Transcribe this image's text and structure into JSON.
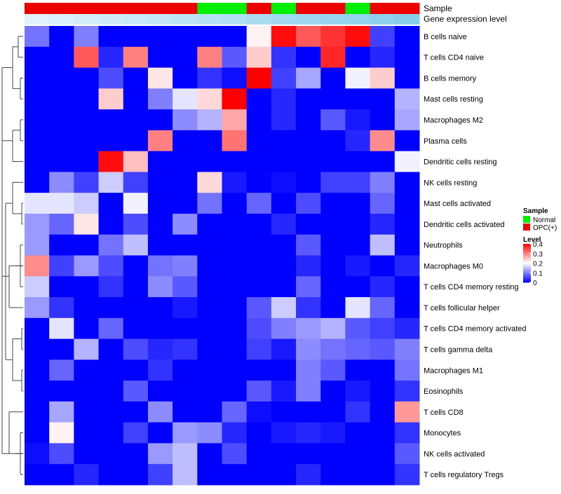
{
  "chart_data": {
    "type": "heatmap",
    "annotation_tracks": [
      {
        "label": "Sample",
        "values": [
          "OPC(+)",
          "OPC(+)",
          "OPC(+)",
          "OPC(+)",
          "OPC(+)",
          "OPC(+)",
          "OPC(+)",
          "Normal",
          "Normal",
          "OPC(+)",
          "Normal",
          "OPC(+)",
          "OPC(+)",
          "Normal",
          "OPC(+)",
          "OPC(+)"
        ]
      },
      {
        "label": "Gene expression level",
        "values": [
          0.0,
          0.07,
          0.13,
          0.2,
          0.27,
          0.33,
          0.4,
          0.47,
          0.53,
          0.6,
          0.67,
          0.73,
          0.8,
          0.87,
          0.93,
          1.0
        ]
      }
    ],
    "rows": [
      "B cells naive",
      "T cells CD4 naive",
      "B cells memory",
      "Mast cells resting",
      "Macrophages M2",
      "Plasma cells",
      "Dendritic cells resting",
      "NK cells resting",
      "Mast cells activated",
      "Dendritic cells activated",
      "Neutrophils",
      "Macrophages M0",
      "T cells CD4 memory resting",
      "T cells follicular helper",
      "T cells CD4 memory activated",
      "T cells gamma delta",
      "Macrophages M1",
      "Eosinophils",
      "T cells CD8",
      "Monocytes",
      "NK cells activated",
      "T cells regulatory  Tregs"
    ],
    "values": [
      [
        0.09,
        0.0,
        0.1,
        0.0,
        0.0,
        0.0,
        0.0,
        0.0,
        0.0,
        0.21,
        0.39,
        0.33,
        0.36,
        0.39,
        0.05,
        0.0
      ],
      [
        0.0,
        0.0,
        0.33,
        0.03,
        0.3,
        0.0,
        0.0,
        0.3,
        0.07,
        0.24,
        0.04,
        0.0,
        0.37,
        0.0,
        0.03,
        0.0
      ],
      [
        0.0,
        0.0,
        0.0,
        0.06,
        0.0,
        0.22,
        0.0,
        0.04,
        0.01,
        0.4,
        0.05,
        0.13,
        0.0,
        0.19,
        0.24,
        0.0
      ],
      [
        0.0,
        0.0,
        0.0,
        0.24,
        0.0,
        0.1,
        0.18,
        0.23,
        0.4,
        0.0,
        0.03,
        0.0,
        0.0,
        0.0,
        0.0,
        0.14
      ],
      [
        0.0,
        0.0,
        0.0,
        0.0,
        0.0,
        0.0,
        0.11,
        0.14,
        0.27,
        0.0,
        0.03,
        0.0,
        0.07,
        0.02,
        0.0,
        0.13
      ],
      [
        0.0,
        0.0,
        0.0,
        0.0,
        0.0,
        0.3,
        0.0,
        0.0,
        0.31,
        0.0,
        0.0,
        0.0,
        0.0,
        0.03,
        0.29,
        0.0
      ],
      [
        0.0,
        0.0,
        0.0,
        0.39,
        0.25,
        0.0,
        0.0,
        0.0,
        0.0,
        0.0,
        0.0,
        0.0,
        0.0,
        0.0,
        0.0,
        0.19
      ],
      [
        0.0,
        0.11,
        0.05,
        0.16,
        0.05,
        0.0,
        0.0,
        0.23,
        0.02,
        0.0,
        0.01,
        0.0,
        0.05,
        0.05,
        0.1,
        0.0
      ],
      [
        0.18,
        0.18,
        0.16,
        0.0,
        0.19,
        0.0,
        0.0,
        0.09,
        0.0,
        0.08,
        0.0,
        0.06,
        0.0,
        0.0,
        0.08,
        0.0
      ],
      [
        0.12,
        0.08,
        0.22,
        0.0,
        0.06,
        0.0,
        0.11,
        0.0,
        0.0,
        0.0,
        0.03,
        0.0,
        0.0,
        0.0,
        0.03,
        0.0
      ],
      [
        0.12,
        0.0,
        0.0,
        0.09,
        0.15,
        0.0,
        0.0,
        0.0,
        0.0,
        0.0,
        0.0,
        0.07,
        0.0,
        0.0,
        0.15,
        0.0
      ],
      [
        0.29,
        0.05,
        0.12,
        0.06,
        0.0,
        0.09,
        0.1,
        0.0,
        0.0,
        0.0,
        0.0,
        0.03,
        0.0,
        0.02,
        0.0,
        0.03
      ],
      [
        0.16,
        0.0,
        0.0,
        0.04,
        0.0,
        0.11,
        0.07,
        0.0,
        0.0,
        0.0,
        0.0,
        0.08,
        0.0,
        0.0,
        0.03,
        0.0
      ],
      [
        0.12,
        0.04,
        0.0,
        0.0,
        0.0,
        0.0,
        0.02,
        0.0,
        0.0,
        0.07,
        0.16,
        0.04,
        0.0,
        0.18,
        0.08,
        0.0
      ],
      [
        0.0,
        0.18,
        0.0,
        0.08,
        0.0,
        0.0,
        0.0,
        0.0,
        0.0,
        0.06,
        0.1,
        0.12,
        0.14,
        0.07,
        0.05,
        0.03
      ],
      [
        0.0,
        0.0,
        0.14,
        0.0,
        0.06,
        0.03,
        0.04,
        0.0,
        0.0,
        0.05,
        0.02,
        0.11,
        0.09,
        0.08,
        0.07,
        0.1
      ],
      [
        0.0,
        0.08,
        0.0,
        0.0,
        0.0,
        0.04,
        0.0,
        0.0,
        0.0,
        0.0,
        0.0,
        0.1,
        0.07,
        0.0,
        0.0,
        0.09
      ],
      [
        0.0,
        0.0,
        0.0,
        0.0,
        0.07,
        0.0,
        0.0,
        0.0,
        0.0,
        0.07,
        0.02,
        0.1,
        0.0,
        0.02,
        0.0,
        0.04
      ],
      [
        0.0,
        0.13,
        0.0,
        0.0,
        0.0,
        0.11,
        0.0,
        0.0,
        0.08,
        0.01,
        0.0,
        0.0,
        0.0,
        0.04,
        0.0,
        0.28
      ],
      [
        0.0,
        0.21,
        0.0,
        0.0,
        0.05,
        0.0,
        0.12,
        0.11,
        0.03,
        0.0,
        0.02,
        0.03,
        0.02,
        0.0,
        0.0,
        0.04
      ],
      [
        0.01,
        0.06,
        0.0,
        0.0,
        0.0,
        0.12,
        0.15,
        0.0,
        0.06,
        0.0,
        0.0,
        0.0,
        0.0,
        0.0,
        0.0,
        0.07
      ],
      [
        0.0,
        0.0,
        0.03,
        0.0,
        0.0,
        0.05,
        0.15,
        0.0,
        0.0,
        0.0,
        0.0,
        0.03,
        0.0,
        0.0,
        0.0,
        0.04
      ]
    ],
    "legend": [
      {
        "title": "Sample",
        "entries": [
          {
            "label": "Normal",
            "color": "#00ee00"
          },
          {
            "label": "OPC(+)",
            "color": "#ee0000"
          }
        ]
      },
      {
        "title": "Level",
        "ticks": [
          "0.4",
          "0.3",
          "0.2",
          "0.1",
          "0"
        ],
        "range": [
          0,
          0.4
        ],
        "colors": {
          "low": "#0000ff",
          "mid": "#ffffff",
          "high": "#ff0000",
          "mid_value": 0.2
        }
      }
    ],
    "annotation_colors": {
      "Normal": "#00ee00",
      "OPC(+)": "#ee0000",
      "level_low": "#e0f3fb",
      "level_high": "#87ceeb"
    },
    "dendrogram": "rows",
    "legend_position": "right"
  }
}
